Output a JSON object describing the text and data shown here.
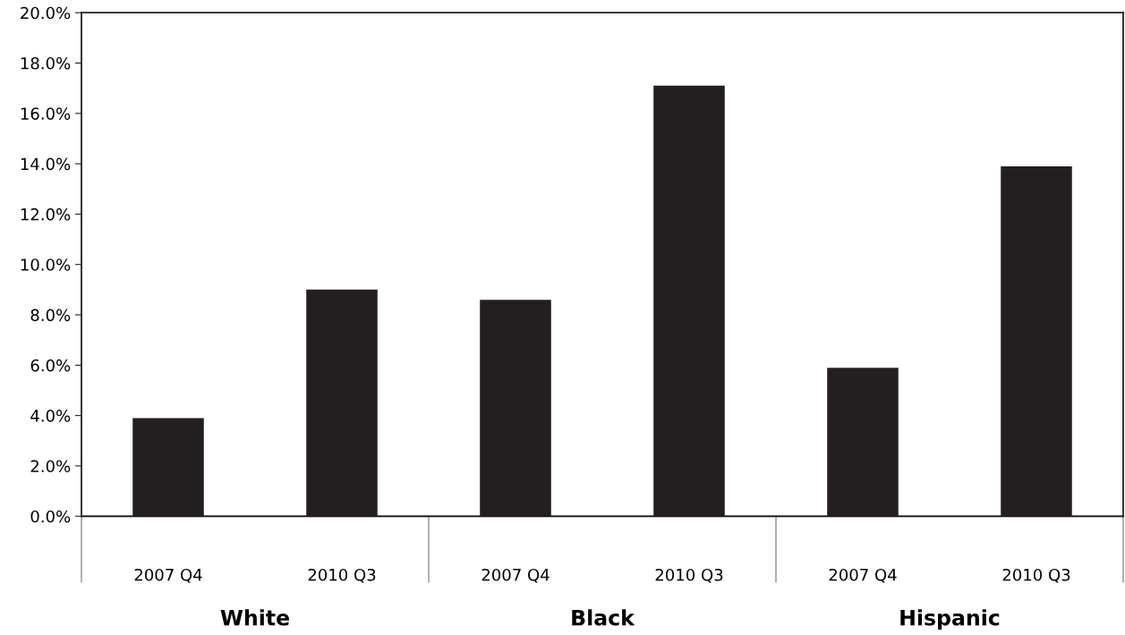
{
  "chart_data": {
    "type": "bar",
    "categories": [
      "2007 Q4",
      "2010 Q3",
      "2007 Q4",
      "2010 Q3",
      "2007 Q4",
      "2010 Q3"
    ],
    "values": [
      3.9,
      9.0,
      8.6,
      17.1,
      5.9,
      13.9
    ],
    "color": "#231f20",
    "ylim": [
      0,
      20
    ],
    "yticks": [
      {
        "value": 0,
        "label": "0.0%"
      },
      {
        "value": 2,
        "label": "2.0%"
      },
      {
        "value": 4,
        "label": "4.0%"
      },
      {
        "value": 6,
        "label": "6.0%"
      },
      {
        "value": 8,
        "label": "8.0%"
      },
      {
        "value": 10,
        "label": "10.0%"
      },
      {
        "value": 12,
        "label": "12.0%"
      },
      {
        "value": 14,
        "label": "14.0%"
      },
      {
        "value": 16,
        "label": "16.0%"
      },
      {
        "value": 18,
        "label": "18.0%"
      },
      {
        "value": 20,
        "label": "20.0%"
      }
    ],
    "annotations": [
      "White",
      "Black",
      "Hispanic"
    ],
    "grid": false,
    "legend": false
  }
}
